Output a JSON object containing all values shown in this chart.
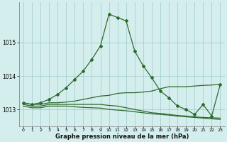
{
  "title": "Graphe pression niveau de la mer (hPa)",
  "bg_color": "#d4eeee",
  "grid_color": "#9ec8c8",
  "line_color": "#2d6a2d",
  "xlim": [
    -0.5,
    23.5
  ],
  "ylim": [
    1012.5,
    1016.2
  ],
  "yticks": [
    1013,
    1014,
    1015
  ],
  "xticks": [
    0,
    1,
    2,
    3,
    4,
    5,
    6,
    7,
    8,
    9,
    10,
    11,
    12,
    13,
    14,
    15,
    16,
    17,
    18,
    19,
    20,
    21,
    22,
    23
  ],
  "series1_x": [
    0,
    1,
    2,
    3,
    4,
    5,
    6,
    7,
    8,
    9,
    10,
    11,
    12,
    13,
    14,
    15,
    16,
    17,
    18,
    19,
    20,
    21,
    22,
    23
  ],
  "series1_y": [
    1013.2,
    1013.15,
    1013.2,
    1013.3,
    1013.45,
    1013.65,
    1013.9,
    1014.15,
    1014.5,
    1014.9,
    1015.85,
    1015.75,
    1015.65,
    1014.75,
    1014.3,
    1013.95,
    1013.55,
    1013.35,
    1013.1,
    1013.0,
    1012.85,
    1013.15,
    1012.8,
    1013.75
  ],
  "series2_x": [
    0,
    1,
    2,
    3,
    4,
    5,
    6,
    7,
    8,
    9,
    10,
    11,
    12,
    13,
    14,
    15,
    16,
    17,
    18,
    19,
    20,
    21,
    22,
    23
  ],
  "series2_y": [
    1013.2,
    1013.15,
    1013.15,
    1013.2,
    1013.2,
    1013.22,
    1013.25,
    1013.3,
    1013.35,
    1013.4,
    1013.42,
    1013.48,
    1013.5,
    1013.5,
    1013.52,
    1013.55,
    1013.62,
    1013.68,
    1013.68,
    1013.68,
    1013.7,
    1013.72,
    1013.73,
    1013.75
  ],
  "series3_x": [
    0,
    1,
    2,
    3,
    4,
    5,
    6,
    7,
    8,
    9,
    10,
    11,
    12,
    13,
    14,
    15,
    16,
    17,
    18,
    19,
    20,
    21,
    22,
    23
  ],
  "series3_y": [
    1013.15,
    1013.1,
    1013.1,
    1013.15,
    1013.15,
    1013.15,
    1013.15,
    1013.15,
    1013.15,
    1013.15,
    1013.12,
    1013.1,
    1013.05,
    1013.0,
    1012.95,
    1012.9,
    1012.88,
    1012.85,
    1012.82,
    1012.8,
    1012.78,
    1012.76,
    1012.75,
    1012.74
  ],
  "series4_x": [
    0,
    1,
    2,
    3,
    4,
    5,
    6,
    7,
    8,
    9,
    10,
    11,
    12,
    13,
    14,
    15,
    16,
    17,
    18,
    19,
    20,
    21,
    22,
    23
  ],
  "series4_y": [
    1013.1,
    1013.05,
    1013.05,
    1013.1,
    1013.1,
    1013.1,
    1013.08,
    1013.06,
    1013.05,
    1013.04,
    1013.0,
    1012.98,
    1012.96,
    1012.93,
    1012.9,
    1012.87,
    1012.85,
    1012.83,
    1012.8,
    1012.78,
    1012.76,
    1012.74,
    1012.72,
    1012.7
  ]
}
